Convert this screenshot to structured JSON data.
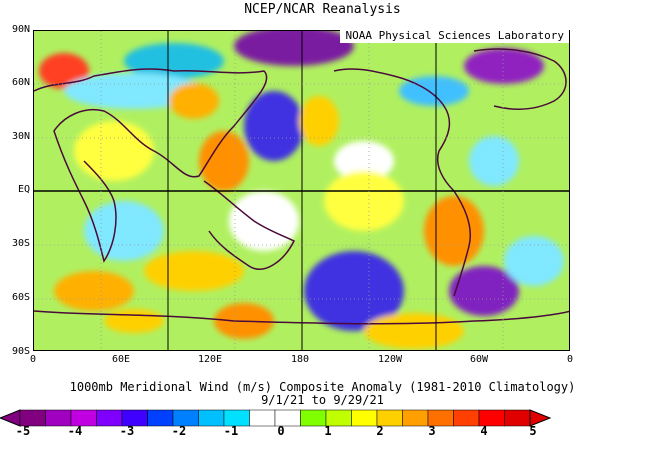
{
  "header": {
    "title": "NCEP/NCAR Reanalysis",
    "credit": "NOAA Physical Sciences Laboratory"
  },
  "axes": {
    "lat_labels": [
      "90N",
      "60N",
      "30N",
      "EQ",
      "30S",
      "60S",
      "90S"
    ],
    "lon_labels": [
      "0",
      "60E",
      "120E",
      "180",
      "120W",
      "60W",
      "0"
    ]
  },
  "caption": {
    "line1": "1000mb Meridional Wind (m/s) Composite Anomaly (1981-2010 Climatology)",
    "line2": "9/1/21  to 9/29/21"
  },
  "colorbar": {
    "labels": [
      "-5",
      "-4",
      "-3",
      "-2",
      "-1",
      "0",
      "1",
      "2",
      "3",
      "4",
      "5"
    ],
    "colors": [
      "#800080",
      "#a000c0",
      "#c000e0",
      "#8000ff",
      "#4000ff",
      "#0040ff",
      "#0080ff",
      "#00c0ff",
      "#00e0ff",
      "#ffffff",
      "#ffffff",
      "#80ff00",
      "#c0ff00",
      "#ffff00",
      "#ffd000",
      "#ffa000",
      "#ff7000",
      "#ff4000",
      "#ff0000",
      "#e00000"
    ]
  }
}
